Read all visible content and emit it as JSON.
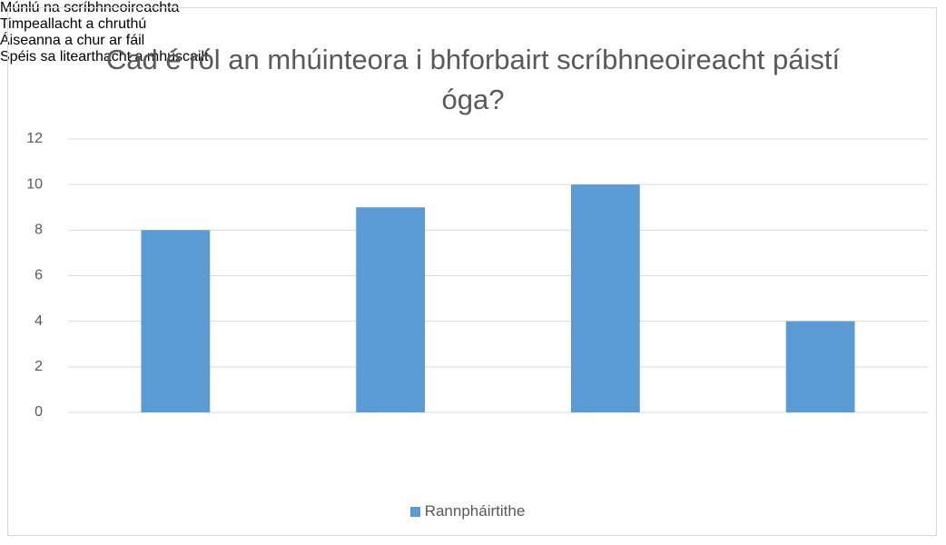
{
  "chart_data": {
    "type": "bar",
    "title": "Cad é ról an mhúinteora i bhforbairt scríbhneoireacht páistí óga?",
    "categories": [
      "Múnlú na scríbhneoireachta",
      "Timpeallacht a chruthú",
      "Áiseanna a chur ar fáil",
      "Spéis sa litearthacht a mhúscailt"
    ],
    "series": [
      {
        "name": "Rannpháirtithe",
        "color": "#5b9bd5",
        "values": [
          8,
          9,
          10,
          4
        ]
      }
    ],
    "ylim": [
      0,
      12
    ],
    "yticks": [
      0,
      2,
      4,
      6,
      8,
      10,
      12
    ],
    "grid": true,
    "legend": "bottom"
  }
}
